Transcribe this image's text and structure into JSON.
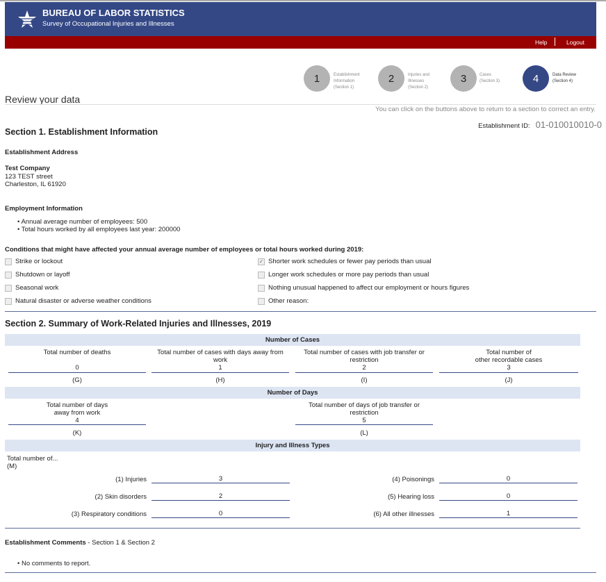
{
  "header": {
    "title": "BUREAU OF LABOR STATISTICS",
    "subtitle": "Survey of Occupational Injuries and Illnesses",
    "logo": "bls-star-logo",
    "help": "Help",
    "logout": "Logout",
    "colors": {
      "header": "#344886",
      "bar": "#990000"
    }
  },
  "steps": [
    {
      "num": "1",
      "l1": "Establishment",
      "l2": "Information",
      "l3": "(Section 1)"
    },
    {
      "num": "2",
      "l1": "Injuries and",
      "l2": "Illnesses",
      "l3": "(Section 2)"
    },
    {
      "num": "3",
      "l1": "Cases",
      "l2": "(Section 3)",
      "l3": ""
    },
    {
      "num": "4",
      "l1": "Data Review",
      "l2": "(Section 4)",
      "l3": ""
    }
  ],
  "page": {
    "title": "Review your data",
    "hint": "You can click on the buttons above to return to a section to correct an entry.",
    "est_id_label": "Establishment ID:",
    "est_id": "01-010010010-0"
  },
  "s1": {
    "title": "Section 1. Establishment Information",
    "addr_head": "Establishment Address",
    "company": "Test Company",
    "street": "123 TEST street",
    "city": "Charleston, IL 61920",
    "emp_head": "Employment Information",
    "emp1": "Annual average number of employees: 500",
    "emp2": "Total hours worked by all employees last year: 200000",
    "cond_head": "Conditions that might have affected your annual average number of employees or total hours worked during 2019:",
    "conds": [
      {
        "label": "Strike or lockout",
        "checked": false
      },
      {
        "label": "Shutdown or layoff",
        "checked": false
      },
      {
        "label": "Seasonal work",
        "checked": false
      },
      {
        "label": "Natural disaster or adverse weather conditions",
        "checked": false
      },
      {
        "label": "Shorter work schedules or fewer pay periods than usual",
        "checked": true
      },
      {
        "label": "Longer work schedules or more pay periods than usual",
        "checked": false
      },
      {
        "label": "Nothing unusual happened to affect our employment or hours figures",
        "checked": false
      },
      {
        "label": "Other reason:",
        "checked": false
      }
    ]
  },
  "s2": {
    "title": "Section 2. Summary of Work-Related Injuries and Illnesses, 2019",
    "cases_head": "Number of Cases",
    "cases": [
      {
        "l1": "Total number of deaths",
        "l2": "",
        "v": "0",
        "code": "(G)"
      },
      {
        "l1": "Total number of cases with days away from",
        "l2": "work",
        "v": "1",
        "code": "(H)"
      },
      {
        "l1": "Total number of cases with job transfer or",
        "l2": "restriction",
        "v": "2",
        "code": "(I)"
      },
      {
        "l1": "Total number of",
        "l2": "other recordable cases",
        "v": "3",
        "code": "(J)"
      }
    ],
    "days_head": "Number of Days",
    "days": [
      {
        "l1": "Total number of days",
        "l2": "away from work",
        "v": "4",
        "code": "(K)"
      },
      {
        "l1": "Total number of days of job transfer or",
        "l2": "restriction",
        "v": "5",
        "code": "(L)"
      }
    ],
    "types_head": "Injury and Illness Types",
    "types_intro": "Total number of...",
    "types_code": "(M)",
    "types": [
      {
        "label": "(1) Injuries",
        "v": "3"
      },
      {
        "label": "(2) Skin disorders",
        "v": "2"
      },
      {
        "label": "(3) Respiratory conditions",
        "v": "0"
      },
      {
        "label": "(4) Poisonings",
        "v": "0"
      },
      {
        "label": "(5) Hearing loss",
        "v": "0"
      },
      {
        "label": "(6) All other illnesses",
        "v": "1"
      }
    ]
  },
  "comments": {
    "head": "Establishment Comments",
    "sub": " - Section 1 & Section 2",
    "item": "No comments to report."
  }
}
